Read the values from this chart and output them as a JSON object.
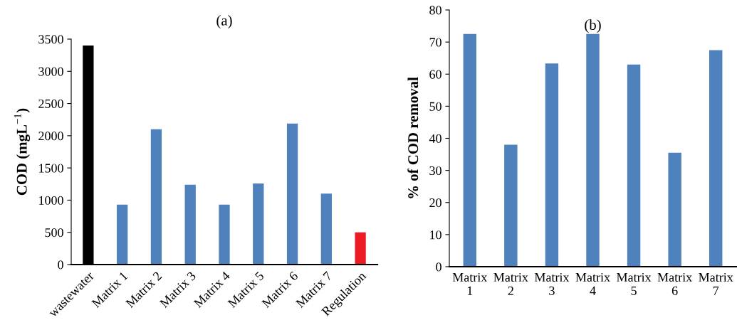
{
  "chart_data": [
    {
      "type": "bar",
      "title": "(a)",
      "ylabel": "COD (mgL$^{−1}$)",
      "categories": [
        "wastewater",
        "Matrix 1",
        "Matrix 2",
        "Matrix 3",
        "Matrix 4",
        "Matrix 5",
        "Matrix 6",
        "Matrix 7",
        "Regulation"
      ],
      "values": [
        3400,
        930,
        2100,
        1240,
        930,
        1260,
        2190,
        1100,
        500
      ],
      "colors": [
        "#000000",
        "#4f81bd",
        "#4f81bd",
        "#4f81bd",
        "#4f81bd",
        "#4f81bd",
        "#4f81bd",
        "#4f81bd",
        "#ed1c24"
      ],
      "ylim": [
        0,
        3500
      ],
      "yticks": [
        0,
        500,
        1000,
        1500,
        2000,
        2500,
        3000,
        3500
      ],
      "grid": false
    },
    {
      "type": "bar",
      "title": "(b)",
      "ylabel": "% of COD removal",
      "categories": [
        "Matrix 1",
        "Matrix 2",
        "Matrix 3",
        "Matrix 4",
        "Matrix 5",
        "Matrix 6",
        "Matrix 7"
      ],
      "values": [
        72.5,
        38,
        63.3,
        72.5,
        63,
        35.5,
        67.5
      ],
      "colors": [
        "#4f81bd",
        "#4f81bd",
        "#4f81bd",
        "#4f81bd",
        "#4f81bd",
        "#4f81bd",
        "#4f81bd"
      ],
      "ylim": [
        0,
        80
      ],
      "yticks": [
        0,
        10,
        20,
        30,
        40,
        50,
        60,
        70,
        80
      ],
      "grid": false
    }
  ]
}
